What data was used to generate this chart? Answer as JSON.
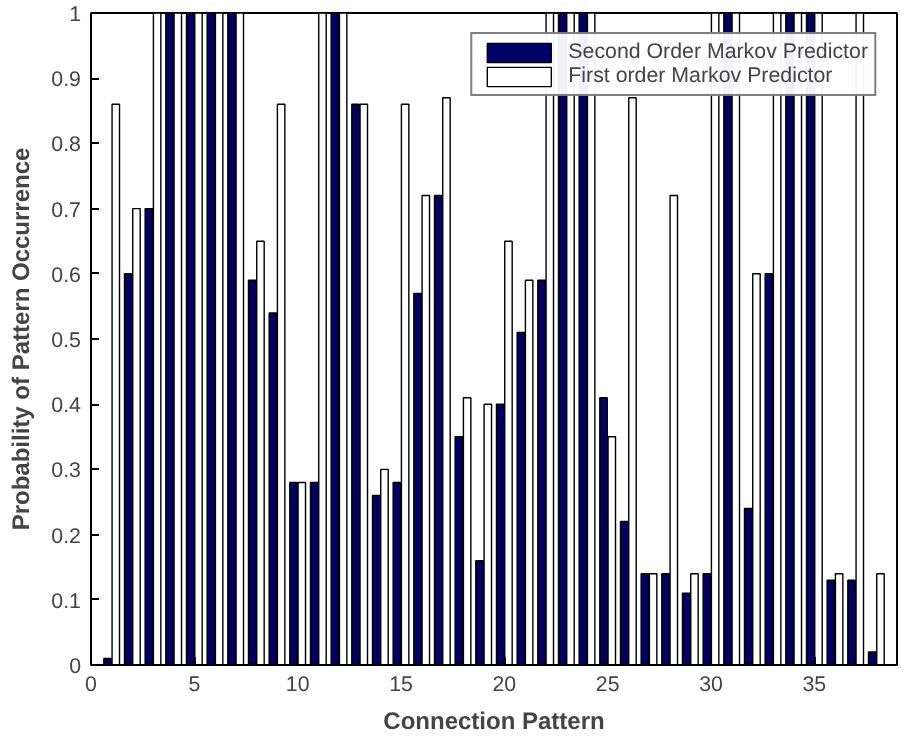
{
  "chart_data": {
    "type": "bar",
    "xlabel": "Connection Pattern",
    "ylabel": "Probability of Pattern Occurrence",
    "x": [
      1,
      2,
      3,
      4,
      5,
      6,
      7,
      8,
      9,
      10,
      11,
      12,
      13,
      14,
      15,
      16,
      17,
      18,
      19,
      20,
      21,
      22,
      23,
      24,
      25,
      26,
      27,
      28,
      29,
      30,
      31,
      32,
      33,
      34,
      35,
      36,
      37,
      38
    ],
    "series": [
      {
        "name": "Second Order Markov Predictor",
        "color": "#000066",
        "values": [
          0.01,
          0.6,
          0.7,
          1,
          1,
          1,
          1,
          0.59,
          0.54,
          0.28,
          0.28,
          1,
          0.86,
          0.26,
          0.28,
          0.57,
          0.72,
          0.35,
          0.16,
          0.4,
          0.51,
          0.59,
          1,
          1,
          0.41,
          0.22,
          0.14,
          0.14,
          0.11,
          0.14,
          1,
          0.24,
          0.6,
          1,
          1,
          0.13,
          0.13,
          0.02
        ]
      },
      {
        "name": "First order Markov Predictor",
        "color": "#ffffff",
        "values": [
          0.86,
          0.7,
          1,
          1,
          1,
          1,
          1,
          0.65,
          0.86,
          0.28,
          1,
          1,
          0.86,
          0.3,
          0.86,
          0.72,
          0.87,
          0.41,
          0.4,
          0.65,
          0.59,
          1,
          1,
          1,
          0.35,
          0.87,
          0.14,
          0.72,
          0.14,
          1,
          1,
          0.6,
          1,
          1,
          1,
          0.14,
          1,
          0.14
        ]
      }
    ],
    "xlim": [
      0,
      39
    ],
    "ylim": [
      0,
      1
    ],
    "xticks": [
      0,
      5,
      10,
      15,
      20,
      25,
      30,
      35
    ],
    "yticks": [
      0,
      0.1,
      0.2,
      0.3,
      0.4,
      0.5,
      0.6,
      0.7,
      0.8,
      0.9,
      1
    ],
    "grid": false,
    "legend": "top right"
  }
}
